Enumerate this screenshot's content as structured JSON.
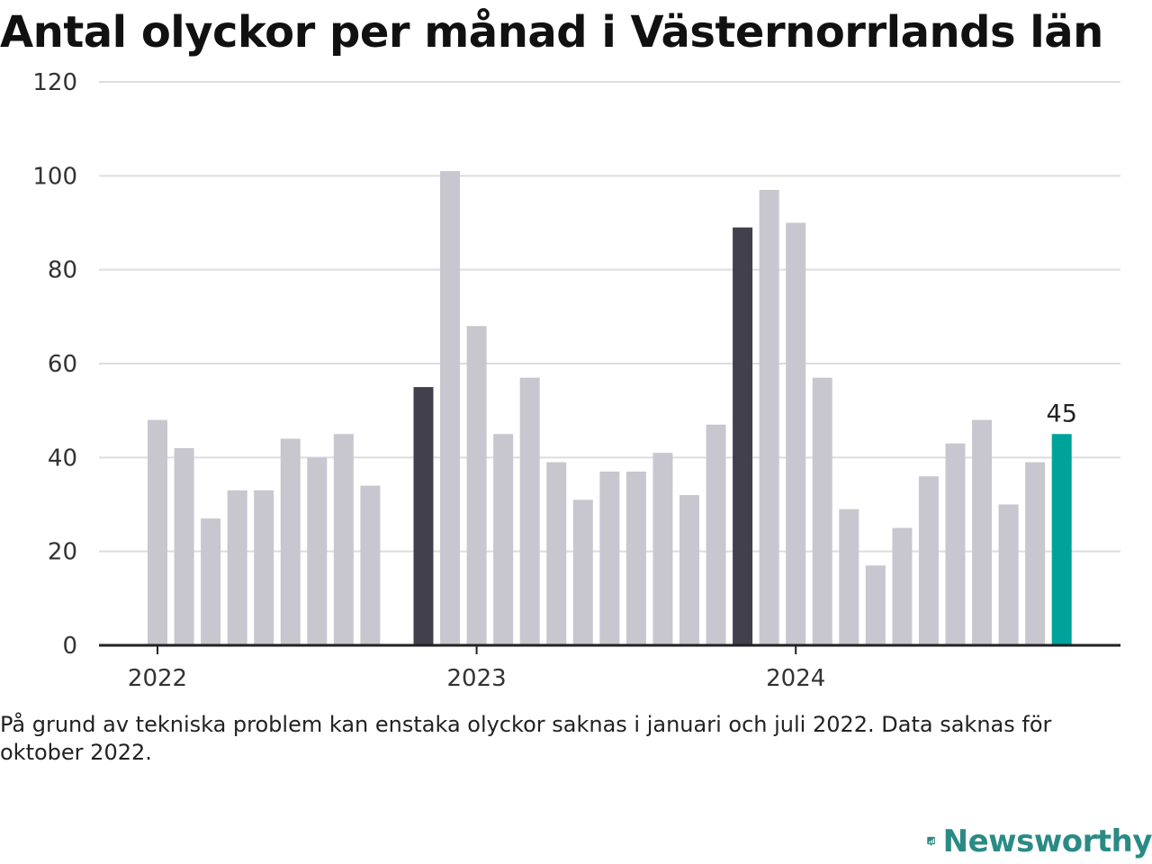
{
  "title": "Antal olyckor per månad i Västernorrlands län",
  "note": "På grund av tekniska problem kan enstaka olyckor saknas i januari och juli 2022. Data saknas för oktober 2022.",
  "brand": {
    "name": "Newsworthy",
    "icon": "newsworthy-logo-icon"
  },
  "colors": {
    "default": "#c8c7cf",
    "january": "#41404c",
    "latest": "#00a39a",
    "grid": "#dddddd",
    "axis": "#222222"
  },
  "chart_data": {
    "type": "bar",
    "title": "Antal olyckor per månad i Västernorrlands län",
    "xlabel": "",
    "ylabel": "",
    "ylim": [
      0,
      120
    ],
    "yticks": [
      0,
      20,
      40,
      60,
      80,
      100,
      120
    ],
    "year_labels": [
      "2022",
      "2023",
      "2024"
    ],
    "grid": true,
    "series": [
      {
        "points": [
          {
            "month": "2022-01",
            "value": 48
          },
          {
            "month": "2022-02",
            "value": 42
          },
          {
            "month": "2022-03",
            "value": 27
          },
          {
            "month": "2022-04",
            "value": 33
          },
          {
            "month": "2022-05",
            "value": 33
          },
          {
            "month": "2022-06",
            "value": 44
          },
          {
            "month": "2022-07",
            "value": 40
          },
          {
            "month": "2022-08",
            "value": 45
          },
          {
            "month": "2022-09",
            "value": 34
          },
          {
            "month": "2022-10",
            "value": null
          },
          {
            "month": "2022-11",
            "value": 55,
            "highlight": "january"
          },
          {
            "month": "2022-12",
            "value": 101
          },
          {
            "month": "2023-01",
            "value": 68
          },
          {
            "month": "2023-02",
            "value": 45
          },
          {
            "month": "2023-03",
            "value": 57
          },
          {
            "month": "2023-04",
            "value": 39
          },
          {
            "month": "2023-05",
            "value": 31
          },
          {
            "month": "2023-06",
            "value": 37
          },
          {
            "month": "2023-07",
            "value": 37
          },
          {
            "month": "2023-08",
            "value": 41
          },
          {
            "month": "2023-09",
            "value": 32
          },
          {
            "month": "2023-10",
            "value": 47
          },
          {
            "month": "2023-11",
            "value": 89,
            "highlight": "january"
          },
          {
            "month": "2023-12",
            "value": 97
          },
          {
            "month": "2024-01",
            "value": 90
          },
          {
            "month": "2024-02",
            "value": 57
          },
          {
            "month": "2024-03",
            "value": 29
          },
          {
            "month": "2024-04",
            "value": 17
          },
          {
            "month": "2024-05",
            "value": 25
          },
          {
            "month": "2024-06",
            "value": 36
          },
          {
            "month": "2024-07",
            "value": 43
          },
          {
            "month": "2024-08",
            "value": 48
          },
          {
            "month": "2024-09",
            "value": 30
          },
          {
            "month": "2024-10",
            "value": 39
          },
          {
            "month": "2024-11",
            "value": 45,
            "highlight": "latest"
          }
        ]
      }
    ],
    "annotations": [
      {
        "month": "2024-11",
        "text": "45"
      }
    ]
  }
}
